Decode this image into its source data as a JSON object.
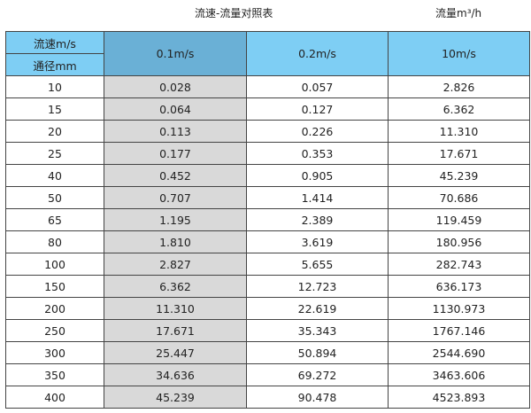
{
  "title": "流速-流量对照表",
  "unit": "流量m³/h",
  "header": {
    "velocity_label": "流速m/s",
    "diameter_label": "通径mm",
    "columns": [
      "0.1m/s",
      "0.2m/s",
      "10m/s"
    ]
  },
  "colors": {
    "header": "#7ecef4",
    "header_selected": "#6ab0d6",
    "highlight_column": "#d9d9d9"
  },
  "rows": [
    [
      "10",
      "0.028",
      "0.057",
      "2.826"
    ],
    [
      "15",
      "0.064",
      "0.127",
      "6.362"
    ],
    [
      "20",
      "0.113",
      "0.226",
      "11.310"
    ],
    [
      "25",
      "0.177",
      "0.353",
      "17.671"
    ],
    [
      "40",
      "0.452",
      "0.905",
      "45.239"
    ],
    [
      "50",
      "0.707",
      "1.414",
      "70.686"
    ],
    [
      "65",
      "1.195",
      "2.389",
      "119.459"
    ],
    [
      "80",
      "1.810",
      "3.619",
      "180.956"
    ],
    [
      "100",
      "2.827",
      "5.655",
      "282.743"
    ],
    [
      "150",
      "6.362",
      "12.723",
      "636.173"
    ],
    [
      "200",
      "11.310",
      "22.619",
      "1130.973"
    ],
    [
      "250",
      "17.671",
      "35.343",
      "1767.146"
    ],
    [
      "300",
      "25.447",
      "50.894",
      "2544.690"
    ],
    [
      "350",
      "34.636",
      "69.272",
      "3463.606"
    ],
    [
      "400",
      "45.239",
      "90.478",
      "4523.893"
    ]
  ]
}
